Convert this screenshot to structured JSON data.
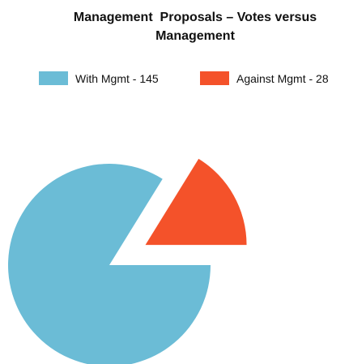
{
  "chart_data": {
    "type": "pie",
    "title": "Management  Proposals – Votes versus Management",
    "categories": [
      "With Mgmt - 145",
      "Against Mgmt - 28"
    ],
    "values": [
      145,
      28
    ],
    "colors": [
      "#6bbcd6",
      "#f4522a"
    ],
    "explode": [
      false,
      true
    ],
    "legend": "top"
  }
}
